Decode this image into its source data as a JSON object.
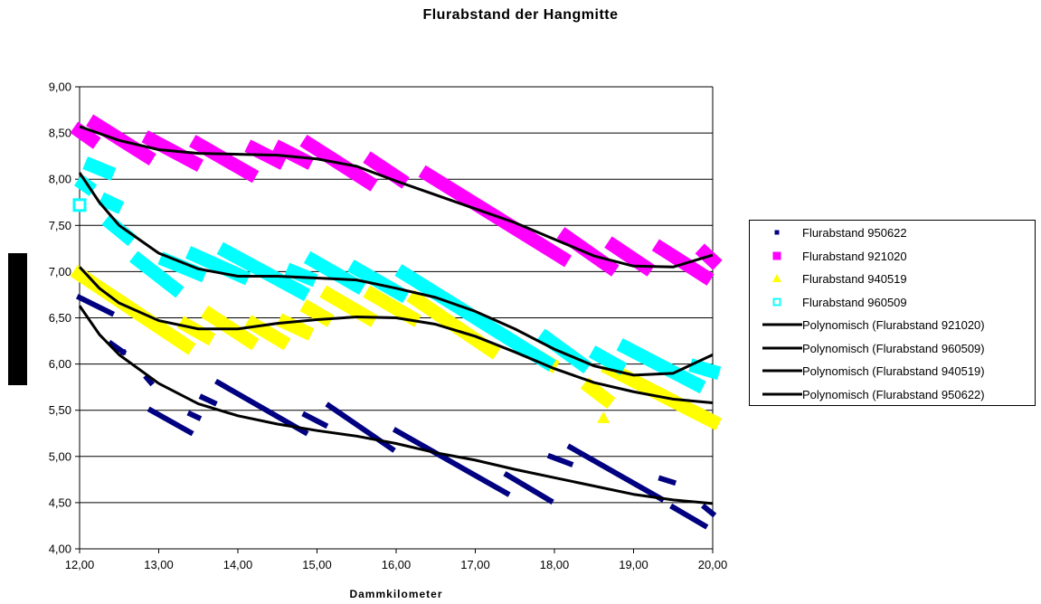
{
  "chart_data": {
    "type": "scatter",
    "title": "Flurabstand der Hangmitte",
    "xlabel": "Dammkilometer",
    "ylabel": "",
    "xlim": [
      12,
      20
    ],
    "ylim": [
      4,
      9
    ],
    "x_ticks": [
      "12,00",
      "13,00",
      "14,00",
      "15,00",
      "16,00",
      "17,00",
      "18,00",
      "19,00",
      "20,00"
    ],
    "y_ticks": [
      "4,00",
      "4,50",
      "5,00",
      "5,50",
      "6,00",
      "6,50",
      "7,00",
      "7,50",
      "8,00",
      "8,50",
      "9,00"
    ],
    "grid": "horizontal",
    "legend_position": "right",
    "series": [
      {
        "name": "Flurabstand 950622",
        "color": "#000080",
        "marker": "square-small",
        "segments": [
          [
            [
              12.0,
              6.72
            ],
            [
              12.4,
              6.55
            ]
          ],
          [
            [
              12.4,
              6.22
            ],
            [
              12.55,
              6.13
            ]
          ],
          [
            [
              12.55,
              6.13
            ],
            [
              12.55,
              6.13
            ]
          ],
          [
            [
              12.85,
              5.85
            ],
            [
              12.9,
              5.8
            ]
          ],
          [
            [
              12.9,
              5.5
            ],
            [
              13.4,
              5.26
            ]
          ],
          [
            [
              13.4,
              5.46
            ],
            [
              13.5,
              5.42
            ]
          ],
          [
            [
              13.55,
              5.64
            ],
            [
              13.7,
              5.58
            ]
          ],
          [
            [
              13.75,
              5.8
            ],
            [
              14.85,
              5.26
            ]
          ],
          [
            [
              14.85,
              5.45
            ],
            [
              15.1,
              5.34
            ]
          ],
          [
            [
              15.15,
              5.55
            ],
            [
              15.95,
              5.08
            ]
          ],
          [
            [
              16.0,
              5.28
            ],
            [
              17.4,
              4.6
            ]
          ],
          [
            [
              17.4,
              4.8
            ],
            [
              17.95,
              4.52
            ]
          ],
          [
            [
              17.95,
              5.0
            ],
            [
              18.2,
              4.92
            ]
          ],
          [
            [
              18.2,
              5.1
            ],
            [
              19.35,
              4.54
            ]
          ],
          [
            [
              19.35,
              4.76
            ],
            [
              19.5,
              4.72
            ]
          ],
          [
            [
              19.5,
              4.45
            ],
            [
              19.9,
              4.25
            ]
          ],
          [
            [
              19.9,
              4.45
            ],
            [
              20.0,
              4.38
            ]
          ]
        ]
      },
      {
        "name": "Flurabstand 921020",
        "color": "#FF00FF",
        "marker": "square",
        "segments": [
          [
            [
              12.0,
              8.52
            ],
            [
              12.15,
              8.43
            ]
          ],
          [
            [
              12.2,
              8.6
            ],
            [
              12.85,
              8.25
            ]
          ],
          [
            [
              12.9,
              8.43
            ],
            [
              13.45,
              8.18
            ]
          ],
          [
            [
              13.5,
              8.38
            ],
            [
              14.15,
              8.06
            ]
          ],
          [
            [
              14.2,
              8.33
            ],
            [
              14.5,
              8.2
            ]
          ],
          [
            [
              14.55,
              8.33
            ],
            [
              14.85,
              8.2
            ]
          ],
          [
            [
              14.9,
              8.38
            ],
            [
              15.65,
              7.97
            ]
          ],
          [
            [
              15.7,
              8.2
            ],
            [
              16.05,
              8.0
            ]
          ],
          [
            [
              16.4,
              8.05
            ],
            [
              18.1,
              7.15
            ]
          ],
          [
            [
              18.15,
              7.38
            ],
            [
              18.7,
              7.05
            ]
          ],
          [
            [
              18.75,
              7.28
            ],
            [
              19.15,
              7.05
            ]
          ],
          [
            [
              19.35,
              7.25
            ],
            [
              19.9,
              6.95
            ]
          ],
          [
            [
              19.9,
              7.2
            ],
            [
              20.0,
              7.12
            ]
          ]
        ]
      },
      {
        "name": "Flurabstand 940519",
        "color": "#FFFF00",
        "marker": "triangle",
        "segments": [
          [
            [
              12.0,
              6.97
            ],
            [
              13.35,
              6.2
            ]
          ],
          [
            [
              13.35,
              6.42
            ],
            [
              13.6,
              6.3
            ]
          ],
          [
            [
              13.65,
              6.53
            ],
            [
              14.15,
              6.25
            ]
          ],
          [
            [
              14.2,
              6.43
            ],
            [
              14.55,
              6.25
            ]
          ],
          [
            [
              14.6,
              6.45
            ],
            [
              14.85,
              6.35
            ]
          ],
          [
            [
              14.9,
              6.6
            ],
            [
              15.1,
              6.5
            ]
          ],
          [
            [
              15.15,
              6.75
            ],
            [
              15.65,
              6.5
            ]
          ],
          [
            [
              15.7,
              6.75
            ],
            [
              16.2,
              6.5
            ]
          ],
          [
            [
              16.25,
              6.7
            ],
            [
              17.2,
              6.15
            ]
          ],
          [
            [
              17.85,
              6.05
            ],
            [
              17.95,
              6.0
            ]
          ],
          [
            [
              18.45,
              5.75
            ],
            [
              18.65,
              5.62
            ]
          ],
          [
            [
              18.62,
              5.42
            ],
            [
              18.62,
              5.42
            ]
          ],
          [
            [
              18.7,
              5.95
            ],
            [
              20.0,
              5.38
            ]
          ]
        ]
      },
      {
        "name": "Flurabstand 960509",
        "color": "#00FFFF",
        "marker": "square-open",
        "segments": [
          [
            [
              12.0,
              7.72
            ],
            [
              12.0,
              7.72
            ]
          ],
          [
            [
              12.05,
              7.95
            ],
            [
              12.1,
              7.92
            ]
          ],
          [
            [
              12.15,
              8.15
            ],
            [
              12.35,
              8.08
            ]
          ],
          [
            [
              12.35,
              7.76
            ],
            [
              12.45,
              7.72
            ]
          ],
          [
            [
              12.4,
              7.52
            ],
            [
              12.6,
              7.38
            ]
          ],
          [
            [
              12.75,
              7.12
            ],
            [
              13.2,
              6.82
            ]
          ],
          [
            [
              13.1,
              7.12
            ],
            [
              13.5,
              6.98
            ]
          ],
          [
            [
              13.45,
              7.18
            ],
            [
              14.05,
              6.95
            ]
          ],
          [
            [
              13.85,
              7.22
            ],
            [
              14.8,
              6.78
            ]
          ],
          [
            [
              14.7,
              7.0
            ],
            [
              14.9,
              6.93
            ]
          ],
          [
            [
              14.95,
              7.12
            ],
            [
              15.5,
              6.85
            ]
          ],
          [
            [
              15.5,
              7.03
            ],
            [
              16.05,
              6.76
            ]
          ],
          [
            [
              16.1,
              6.98
            ],
            [
              17.9,
              6.02
            ]
          ],
          [
            [
              17.9,
              6.28
            ],
            [
              18.35,
              6.0
            ]
          ],
          [
            [
              18.55,
              6.1
            ],
            [
              18.8,
              5.98
            ]
          ],
          [
            [
              18.9,
              6.18
            ],
            [
              19.8,
              5.78
            ]
          ],
          [
            [
              19.8,
              5.97
            ],
            [
              20.0,
              5.92
            ]
          ]
        ]
      }
    ],
    "trendlines": [
      {
        "name": "Polynomisch (Flurabstand 921020)",
        "color": "#000000",
        "points": [
          [
            12.0,
            8.57
          ],
          [
            12.5,
            8.42
          ],
          [
            13.0,
            8.32
          ],
          [
            13.5,
            8.28
          ],
          [
            14.0,
            8.27
          ],
          [
            14.5,
            8.26
          ],
          [
            15.0,
            8.22
          ],
          [
            15.5,
            8.14
          ],
          [
            16.0,
            7.98
          ],
          [
            16.5,
            7.83
          ],
          [
            17.0,
            7.68
          ],
          [
            17.5,
            7.53
          ],
          [
            18.0,
            7.35
          ],
          [
            18.5,
            7.17
          ],
          [
            19.0,
            7.06
          ],
          [
            19.5,
            7.05
          ],
          [
            20.0,
            7.18
          ]
        ]
      },
      {
        "name": "Polynomisch (Flurabstand 960509)",
        "color": "#000000",
        "points": [
          [
            12.0,
            8.07
          ],
          [
            12.25,
            7.75
          ],
          [
            12.5,
            7.5
          ],
          [
            13.0,
            7.2
          ],
          [
            13.5,
            7.03
          ],
          [
            14.0,
            6.95
          ],
          [
            14.5,
            6.95
          ],
          [
            15.0,
            6.93
          ],
          [
            15.5,
            6.91
          ],
          [
            16.0,
            6.82
          ],
          [
            16.5,
            6.72
          ],
          [
            17.0,
            6.57
          ],
          [
            17.5,
            6.38
          ],
          [
            18.0,
            6.16
          ],
          [
            18.5,
            5.98
          ],
          [
            19.0,
            5.88
          ],
          [
            19.5,
            5.9
          ],
          [
            20.0,
            6.1
          ]
        ]
      },
      {
        "name": "Polynomisch (Flurabstand 940519)",
        "color": "#000000",
        "points": [
          [
            12.0,
            7.05
          ],
          [
            12.25,
            6.82
          ],
          [
            12.5,
            6.66
          ],
          [
            13.0,
            6.47
          ],
          [
            13.5,
            6.38
          ],
          [
            14.0,
            6.38
          ],
          [
            14.5,
            6.44
          ],
          [
            15.0,
            6.48
          ],
          [
            15.5,
            6.51
          ],
          [
            16.0,
            6.5
          ],
          [
            16.5,
            6.43
          ],
          [
            17.0,
            6.3
          ],
          [
            17.5,
            6.13
          ],
          [
            18.0,
            5.95
          ],
          [
            18.5,
            5.8
          ],
          [
            19.0,
            5.7
          ],
          [
            19.5,
            5.62
          ],
          [
            20.0,
            5.58
          ]
        ]
      },
      {
        "name": "Polynomisch (Flurabstand 950622)",
        "color": "#000000",
        "points": [
          [
            12.0,
            6.63
          ],
          [
            12.25,
            6.32
          ],
          [
            12.5,
            6.1
          ],
          [
            13.0,
            5.79
          ],
          [
            13.5,
            5.57
          ],
          [
            14.0,
            5.44
          ],
          [
            14.5,
            5.35
          ],
          [
            15.0,
            5.28
          ],
          [
            15.5,
            5.22
          ],
          [
            16.0,
            5.14
          ],
          [
            16.5,
            5.04
          ],
          [
            17.0,
            4.96
          ],
          [
            17.5,
            4.86
          ],
          [
            18.0,
            4.77
          ],
          [
            18.5,
            4.68
          ],
          [
            19.0,
            4.59
          ],
          [
            19.5,
            4.53
          ],
          [
            20.0,
            4.49
          ]
        ]
      }
    ]
  }
}
